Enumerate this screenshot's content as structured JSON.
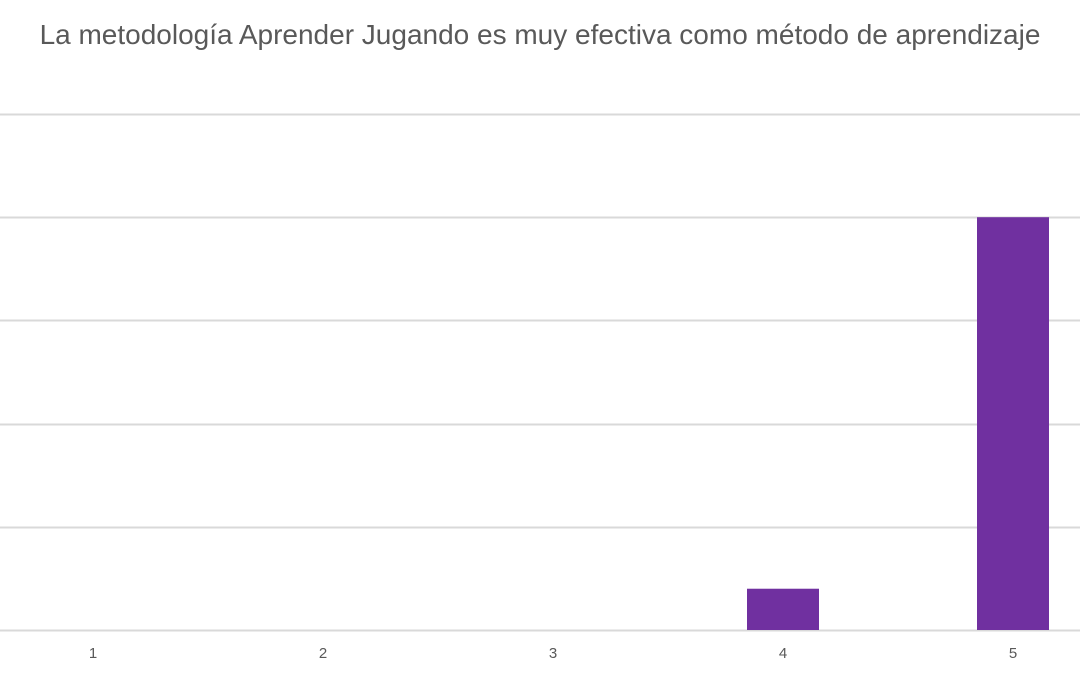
{
  "chart_data": {
    "type": "bar",
    "title": "La metodología Aprender Jugando es muy efectiva como método de aprendizaje",
    "categories": [
      "1",
      "2",
      "3",
      "4",
      "5"
    ],
    "series": [
      {
        "values": [
          0,
          0,
          0,
          2,
          20
        ]
      }
    ],
    "xlabel": "",
    "ylabel": "",
    "ylim": [
      0,
      25
    ],
    "grid": true,
    "gridlines": [
      0,
      5,
      10,
      15,
      20,
      25
    ],
    "y_tick_labels_visible": false,
    "legend": "none",
    "colors": {
      "bar": "#7030a0",
      "grid": "#d9d9d9",
      "text": "#595959"
    }
  }
}
